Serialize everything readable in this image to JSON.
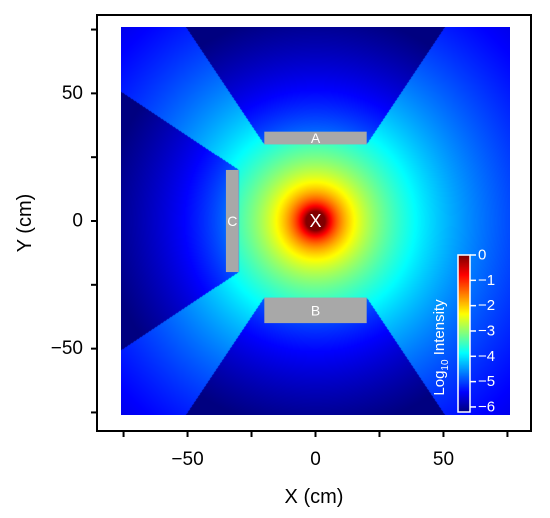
{
  "chart_data": {
    "type": "heatmap",
    "title": "",
    "xlabel": "X (cm)",
    "ylabel": "Y (cm)",
    "xlim": [
      -76,
      76
    ],
    "ylim": [
      -76,
      76
    ],
    "x_ticks": [
      -50,
      0,
      50
    ],
    "y_ticks": [
      50,
      0,
      -50
    ],
    "x_tick_labels": [
      "−50",
      "0",
      "50"
    ],
    "y_tick_labels": [
      "50",
      "0",
      "−50"
    ],
    "grid": false,
    "colorbar": {
      "title_main": "Log",
      "title_sub": "10",
      "title_rest": " Intensity",
      "range": [
        -6.2,
        0
      ],
      "ticks": [
        0,
        -1,
        -2,
        -3,
        -4,
        -5,
        -6
      ],
      "tick_labels": [
        "0",
        "−1",
        "−2",
        "−3",
        "−4",
        "−5",
        "−6"
      ],
      "colormap": "jet",
      "placement": "lower-right inside plot"
    },
    "source": {
      "label": "X",
      "x": 0,
      "y": 0
    },
    "shields": [
      {
        "label": "A",
        "x0": -20,
        "x1": 20,
        "y0": 30,
        "y1": 35
      },
      {
        "label": "B",
        "x0": -20,
        "x1": 20,
        "y0": -40,
        "y1": -30
      },
      {
        "label": "C",
        "x0": -35,
        "x1": -30,
        "y0": -20,
        "y1": 20
      }
    ],
    "background_color": "#ffffff",
    "shield_color": "#a8a8a8"
  }
}
